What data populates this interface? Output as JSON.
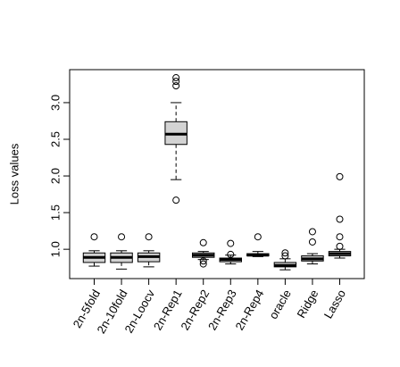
{
  "chart_data": {
    "type": "box",
    "ylabel": "Loss values",
    "categories": [
      "2n-5fold",
      "2n-10fold",
      "2n-Loocv",
      "2n-Rep1",
      "2n-Rep2",
      "2n-Rep3",
      "2n-Rep4",
      "oracle",
      "Ridge",
      "Lasso"
    ],
    "boxes": [
      {
        "whislo": 0.77,
        "q1": 0.82,
        "med": 0.89,
        "q3": 0.95,
        "whishi": 0.98,
        "fliers": [
          1.17
        ]
      },
      {
        "whislo": 0.73,
        "q1": 0.82,
        "med": 0.89,
        "q3": 0.95,
        "whishi": 0.98,
        "fliers": [
          1.17
        ]
      },
      {
        "whislo": 0.76,
        "q1": 0.83,
        "med": 0.9,
        "q3": 0.95,
        "whishi": 0.98,
        "fliers": [
          1.17
        ]
      },
      {
        "whislo": 1.95,
        "q1": 2.43,
        "med": 2.57,
        "q3": 2.74,
        "whishi": 3.0,
        "fliers": [
          3.34,
          3.29,
          3.23,
          1.67
        ]
      },
      {
        "whislo": 0.86,
        "q1": 0.89,
        "med": 0.92,
        "q3": 0.95,
        "whishi": 0.97,
        "fliers": [
          1.09,
          0.84,
          0.8
        ]
      },
      {
        "whislo": 0.8,
        "q1": 0.83,
        "med": 0.86,
        "q3": 0.88,
        "whishi": 0.92,
        "fliers": [
          1.08,
          0.93
        ]
      },
      {
        "whislo": 0.9,
        "q1": 0.91,
        "med": 0.92,
        "q3": 0.94,
        "whishi": 0.97,
        "fliers": [
          1.17
        ]
      },
      {
        "whislo": 0.72,
        "q1": 0.76,
        "med": 0.78,
        "q3": 0.82,
        "whishi": 0.87,
        "fliers": [
          0.95,
          0.91
        ]
      },
      {
        "whislo": 0.8,
        "q1": 0.84,
        "med": 0.87,
        "q3": 0.91,
        "whishi": 0.94,
        "fliers": [
          1.24,
          1.1
        ]
      },
      {
        "whislo": 0.88,
        "q1": 0.91,
        "med": 0.94,
        "q3": 0.97,
        "whishi": 1.0,
        "fliers": [
          1.99,
          1.41,
          1.17,
          1.04
        ]
      }
    ],
    "color": "#d3d3d3",
    "ylim": [
      0.6,
      3.45
    ],
    "yticks": [
      {
        "value": 1,
        "label": "1.0"
      },
      1.5,
      {
        "value": 2,
        "label": "2.0"
      },
      2.5,
      {
        "value": 3,
        "label": "3.0"
      }
    ]
  }
}
